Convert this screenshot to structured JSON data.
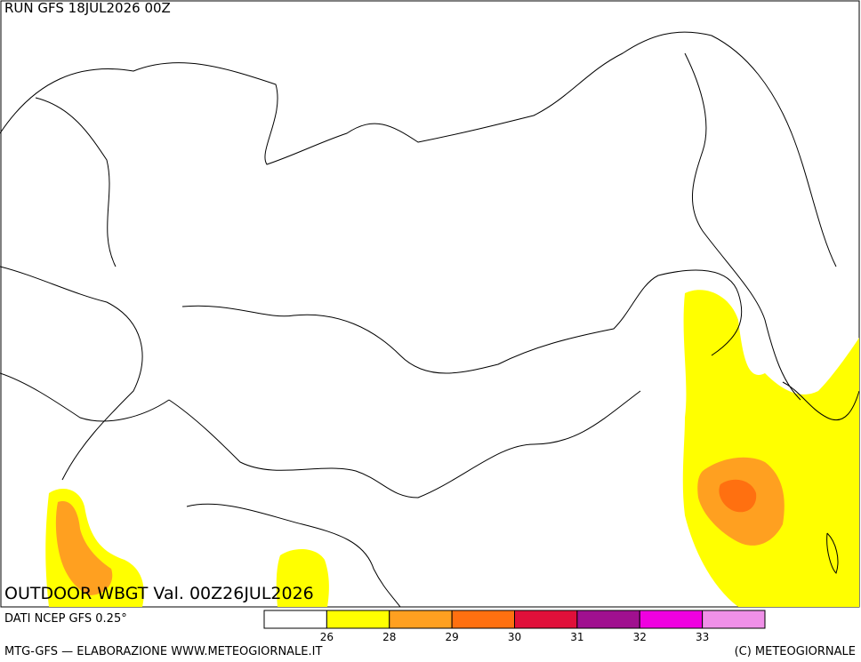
{
  "header": {
    "run": "RUN GFS 18JUL2026 00Z"
  },
  "map": {
    "title": "OUTDOOR WBGT Val. 00Z26JUL2026"
  },
  "colorbar": {
    "ticks": [
      26,
      28,
      29,
      30,
      31,
      32,
      33
    ],
    "colors": [
      "#ffffff",
      "#ffff00",
      "#ffa020",
      "#ff7010",
      "#e0103a",
      "#a0108f",
      "#f000e0",
      "#f090e8"
    ]
  },
  "footer": {
    "source": "DATI NCEP GFS 0.25°",
    "credit": "MTG-GFS — ELABORAZIONE WWW.METEOGIORNALE.IT",
    "copyright": "(C) METEOGIORNALE"
  }
}
